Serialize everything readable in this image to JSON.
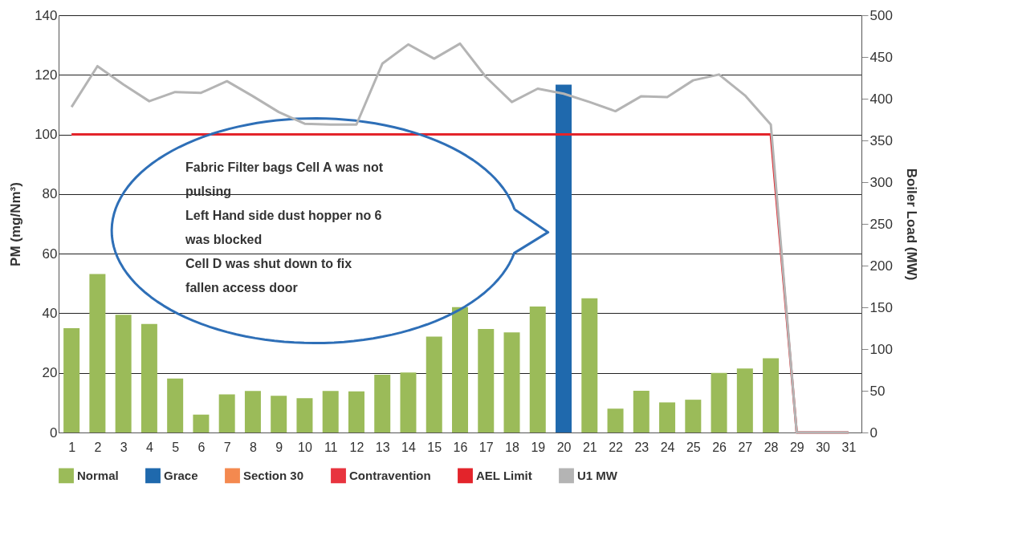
{
  "chart_data": {
    "type": "bar",
    "x": [
      1,
      2,
      3,
      4,
      5,
      6,
      7,
      8,
      9,
      10,
      11,
      12,
      13,
      14,
      15,
      16,
      17,
      18,
      19,
      20,
      21,
      22,
      23,
      24,
      25,
      26,
      27,
      28,
      29,
      30,
      31
    ],
    "series": [
      {
        "name": "Normal",
        "color": "#9bbb59",
        "values": [
          35.0,
          53.2,
          39.5,
          36.4,
          18.1,
          6.0,
          12.8,
          13.9,
          12.3,
          11.5,
          13.9,
          13.8,
          19.4,
          20.1,
          32.2,
          42.1,
          34.7,
          33.6,
          42.3,
          null,
          45.0,
          8.0,
          14.0,
          10.1,
          11.0,
          20.0,
          21.5,
          24.9,
          null,
          null,
          null
        ]
      },
      {
        "name": "Grace",
        "color": "#1f69ad",
        "values": [
          null,
          null,
          null,
          null,
          null,
          null,
          null,
          null,
          null,
          null,
          null,
          null,
          null,
          null,
          null,
          null,
          null,
          null,
          null,
          116.7,
          null,
          null,
          null,
          null,
          null,
          null,
          null,
          null,
          null,
          null,
          null
        ]
      },
      {
        "name": "Section 30",
        "color": "#f4894f",
        "values": [
          null,
          null,
          null,
          null,
          null,
          null,
          null,
          null,
          null,
          null,
          null,
          null,
          null,
          null,
          null,
          null,
          null,
          null,
          null,
          null,
          null,
          null,
          null,
          null,
          null,
          null,
          null,
          null,
          null,
          null,
          null
        ]
      },
      {
        "name": "Contravention",
        "color": "#e8343f",
        "values": [
          null,
          null,
          null,
          null,
          null,
          null,
          null,
          null,
          null,
          null,
          null,
          null,
          null,
          null,
          null,
          null,
          null,
          null,
          null,
          null,
          null,
          null,
          null,
          null,
          null,
          null,
          null,
          null,
          null,
          null,
          null
        ]
      },
      {
        "name": "AEL Limit",
        "type": "line",
        "color": "#e3242b",
        "values": [
          100,
          100,
          100,
          100,
          100,
          100,
          100,
          100,
          100,
          100,
          100,
          100,
          100,
          100,
          100,
          100,
          100,
          100,
          100,
          100,
          100,
          100,
          100,
          100,
          100,
          100,
          100,
          100,
          0,
          0,
          0
        ]
      },
      {
        "name": "U1 MW",
        "type": "line",
        "axis": "y2",
        "color": "#b4b4b4",
        "values": [
          390,
          439,
          417,
          397,
          408,
          407,
          421,
          403,
          384,
          370,
          369,
          369,
          442,
          465,
          448,
          466,
          426,
          396,
          412,
          406,
          396,
          385,
          403,
          402,
          422,
          429,
          404,
          369,
          0,
          0,
          0
        ]
      }
    ],
    "xlim": [
      0.5,
      31.5
    ],
    "xticks": [
      1,
      2,
      3,
      4,
      5,
      6,
      7,
      8,
      9,
      10,
      11,
      12,
      13,
      14,
      15,
      16,
      17,
      18,
      19,
      20,
      21,
      22,
      23,
      24,
      25,
      26,
      27,
      28,
      29,
      30,
      31
    ],
    "ylim": [
      0,
      140
    ],
    "yticks": [
      0,
      20,
      40,
      60,
      80,
      100,
      120,
      140
    ],
    "y2lim": [
      0,
      500
    ],
    "y2ticks": [
      0,
      50,
      100,
      150,
      200,
      250,
      300,
      350,
      400,
      450,
      500
    ],
    "ylabel": "PM (mg/Nm³)",
    "y2label": "Boiler Load (MW)",
    "annotations": [
      "Fabric Filter bags Cell A was not\npulsing\nLeft Hand side dust hopper no 6\nwas blocked\nCell D was shut down to fix\nfallen access door"
    ],
    "grid": "y",
    "legend": "bottom"
  }
}
